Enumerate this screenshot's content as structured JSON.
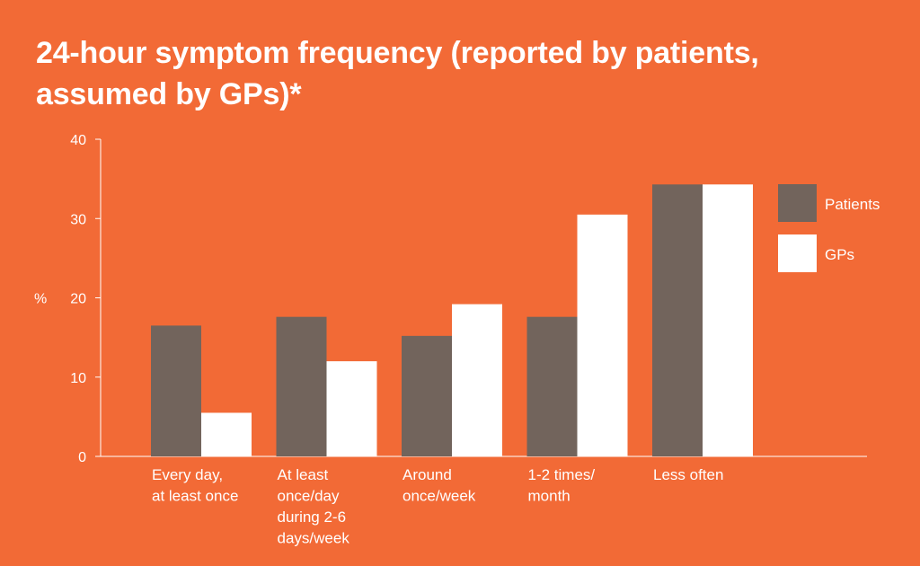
{
  "title_lines": [
    "24-hour symptom frequency (reported by patients,",
    "assumed by GPs)*"
  ],
  "colors": {
    "background": "#f26a36",
    "patients": "#72645c",
    "gps": "#ffffff",
    "text": "#ffffff"
  },
  "chart_data": {
    "type": "bar",
    "title": "24-hour symptom frequency (reported by patients, assumed by GPs)*",
    "ylabel": "%",
    "xlabel": "",
    "ylim": [
      0,
      40
    ],
    "yticks": [
      0,
      10,
      20,
      30,
      40
    ],
    "categories": [
      [
        "Every day,",
        "at least once"
      ],
      [
        "At least",
        "once/day",
        "during 2-6",
        "days/week"
      ],
      [
        "Around",
        "once/week"
      ],
      [
        "1-2 times/",
        "month"
      ],
      [
        "Less often"
      ]
    ],
    "series": [
      {
        "name": "Patients",
        "values": [
          16.5,
          17.6,
          15.2,
          17.6,
          34.3
        ]
      },
      {
        "name": "GPs",
        "values": [
          5.5,
          12.0,
          19.2,
          30.5,
          34.3
        ]
      }
    ],
    "legend_position": "top-right",
    "grid": false
  }
}
